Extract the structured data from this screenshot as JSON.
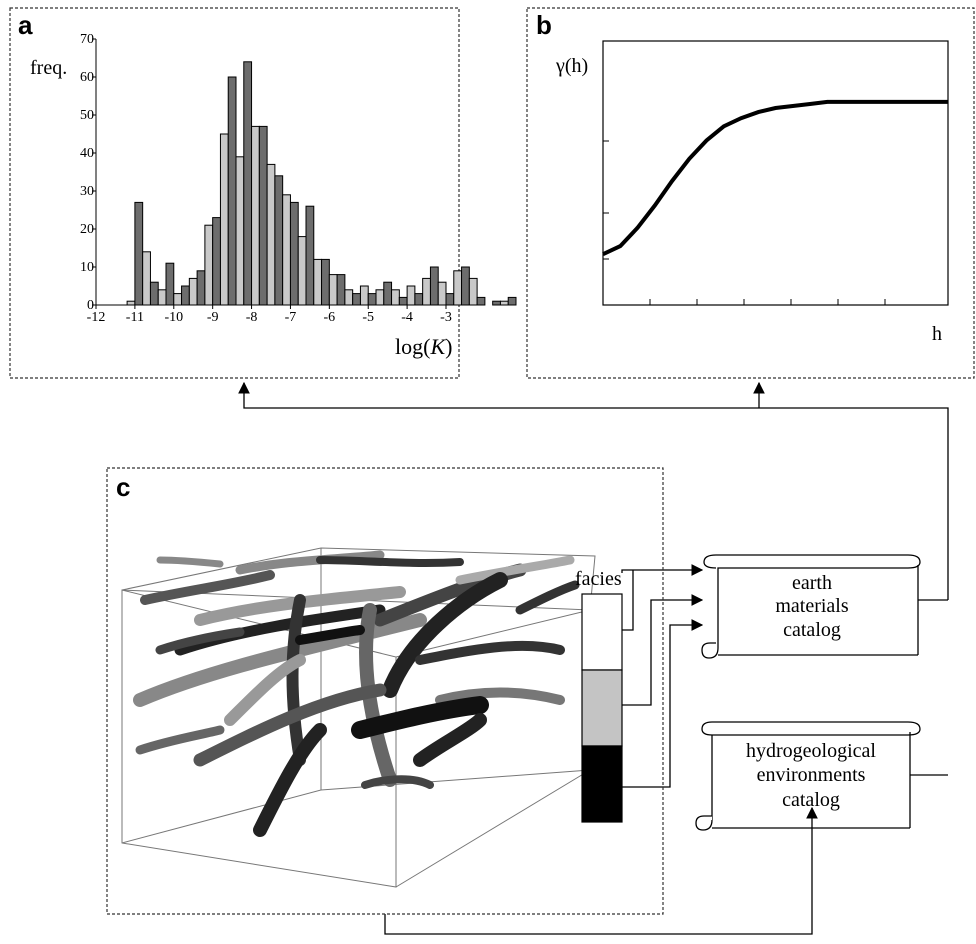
{
  "panels": {
    "a": {
      "letter": "a"
    },
    "b": {
      "letter": "b"
    },
    "c": {
      "letter": "c"
    }
  },
  "chart_data": [
    {
      "type": "bar",
      "ylabel": "freq.",
      "xlabel_prefix": "log(",
      "xlabel_var": "K",
      "xlabel_suffix": ")",
      "xlim": [
        -12,
        -3
      ],
      "ylim": [
        0,
        70
      ],
      "xticks": [
        "-12",
        "-11",
        "-10",
        "-9",
        "-8",
        "-7",
        "-6",
        "-5",
        "-4",
        "-3"
      ],
      "yticks": [
        "0",
        "10",
        "20",
        "30",
        "40",
        "50",
        "60",
        "70"
      ],
      "bin_width": 0.2,
      "bin_start": -11.2,
      "values": [
        1,
        27,
        14,
        6,
        4,
        11,
        3,
        5,
        7,
        9,
        21,
        23,
        45,
        60,
        39,
        64,
        47,
        47,
        37,
        34,
        29,
        27,
        18,
        26,
        12,
        12,
        8,
        8,
        4,
        3,
        5,
        3,
        4,
        6,
        4,
        2,
        5,
        3,
        7,
        10,
        6,
        3,
        9,
        10,
        7,
        2,
        0,
        1,
        1,
        2
      ]
    },
    {
      "type": "line",
      "ylabel": "γ(h)",
      "xlabel": "h",
      "x": [
        0,
        1,
        2,
        3,
        4,
        5,
        6,
        7,
        8,
        9,
        10,
        11,
        12,
        13,
        14,
        15,
        16,
        17,
        18,
        19,
        20
      ],
      "y": [
        0.25,
        0.29,
        0.38,
        0.49,
        0.61,
        0.72,
        0.81,
        0.88,
        0.92,
        0.95,
        0.97,
        0.98,
        0.99,
        1.0,
        1.0,
        1.0,
        1.0,
        1.0,
        1.0,
        1.0,
        1.0
      ],
      "ylim": [
        0,
        1.3
      ],
      "xlim": [
        0,
        20
      ]
    }
  ],
  "facies": {
    "label": "facies",
    "colors": [
      "#ffffff",
      "#c4c4c4",
      "#000000"
    ]
  },
  "catalogs": {
    "earth": [
      "earth",
      "materials",
      "catalog"
    ],
    "hydro": [
      "hydrogeological",
      "environments",
      "catalog"
    ]
  }
}
